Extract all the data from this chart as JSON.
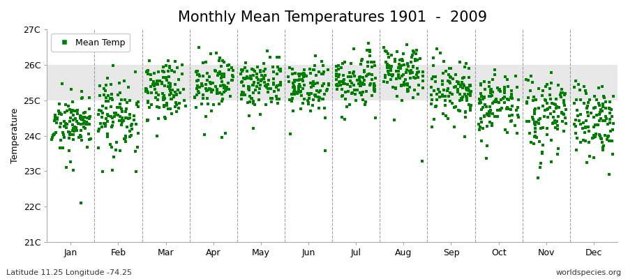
{
  "title": "Monthly Mean Temperatures 1901  -  2009",
  "ylabel": "Temperature",
  "xlabel_months": [
    "Jan",
    "Feb",
    "Mar",
    "Apr",
    "May",
    "Jun",
    "Jul",
    "Aug",
    "Sep",
    "Oct",
    "Nov",
    "Dec"
  ],
  "ylim": [
    21.0,
    27.0
  ],
  "yticks": [
    21,
    22,
    23,
    24,
    25,
    26,
    27
  ],
  "ytick_labels": [
    "21C",
    "22C",
    "23C",
    "24C",
    "25C",
    "26C",
    "27C"
  ],
  "dot_color": "#008000",
  "background_color": "#ffffff",
  "plot_bg_color": "#ffffff",
  "band_color": "#e8e8e8",
  "band_lo": 25.0,
  "band_hi": 26.0,
  "dashed_line_color": "#888888",
  "legend_label": "Mean Temp",
  "footer_left": "Latitude 11.25 Longitude -74.25",
  "footer_right": "worldspecies.org",
  "title_fontsize": 15,
  "axis_label_fontsize": 9,
  "tick_fontsize": 9,
  "footer_fontsize": 8,
  "monthly_means": [
    24.3,
    24.5,
    25.3,
    25.5,
    25.5,
    25.4,
    25.6,
    25.8,
    25.3,
    25.0,
    24.7,
    24.5
  ],
  "monthly_stds": [
    0.35,
    0.55,
    0.45,
    0.38,
    0.35,
    0.35,
    0.35,
    0.38,
    0.42,
    0.48,
    0.52,
    0.55
  ],
  "n_years": 109,
  "seed": 17
}
